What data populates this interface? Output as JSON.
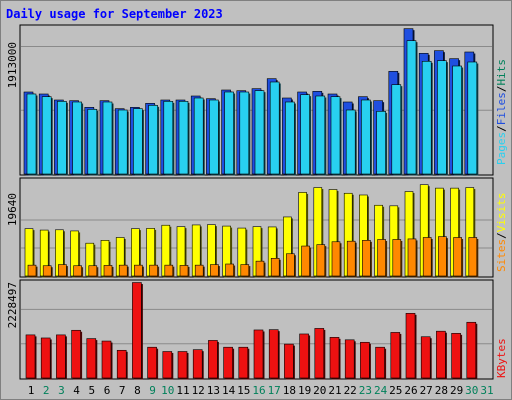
{
  "title": "Daily usage for September 2023",
  "colors": {
    "background": "#c0c0c0",
    "panel": "#c0c0c0",
    "hits": "#1f4fe0",
    "files": "#28d0f0",
    "pages": "#28d0f0",
    "visits": "#ffff00",
    "sites": "#ff8800",
    "kbytes": "#ee1111",
    "weekend_label": "#00805a",
    "weekday_label": "#000000"
  },
  "labels": {
    "pages": "Pages",
    "files": "Files",
    "hits": "Hits",
    "sites": "Sites",
    "visits": "Visits",
    "kbytes": "KBytes",
    "sep": "/"
  },
  "chart_data": [
    {
      "type": "bar",
      "panel": "hits-files-pages",
      "ytick": "1913000",
      "ylim": [
        0,
        2220000
      ],
      "x": [
        1,
        2,
        3,
        4,
        5,
        6,
        7,
        8,
        9,
        10,
        11,
        12,
        13,
        14,
        15,
        16,
        17,
        18,
        19,
        20,
        21,
        22,
        23,
        24,
        25,
        26,
        27,
        28,
        29,
        30,
        31
      ],
      "series": [
        {
          "name": "Hits",
          "values": [
            1230000,
            1200000,
            1110000,
            1100000,
            1000000,
            1100000,
            980000,
            1000000,
            1060000,
            1110000,
            1110000,
            1170000,
            1130000,
            1260000,
            1250000,
            1280000,
            1430000,
            1140000,
            1230000,
            1240000,
            1200000,
            1080000,
            1160000,
            1100000,
            1540000,
            2180000,
            1810000,
            1850000,
            1730000,
            1830000,
            0
          ]
        },
        {
          "name": "Files",
          "values": [
            1200000,
            1160000,
            1090000,
            1080000,
            970000,
            1080000,
            960000,
            980000,
            1030000,
            1090000,
            1090000,
            1140000,
            1110000,
            1230000,
            1230000,
            1250000,
            1380000,
            1080000,
            1190000,
            1170000,
            1160000,
            960000,
            1110000,
            940000,
            1340000,
            2000000,
            1690000,
            1700000,
            1620000,
            1680000,
            0
          ]
        }
      ]
    },
    {
      "type": "bar",
      "panel": "visits-sites",
      "ytick": "19640",
      "ylim": [
        0,
        34000
      ],
      "x": [
        1,
        2,
        3,
        4,
        5,
        6,
        7,
        8,
        9,
        10,
        11,
        12,
        13,
        14,
        15,
        16,
        17,
        18,
        19,
        20,
        21,
        22,
        23,
        24,
        25,
        26,
        27,
        28,
        29,
        30,
        31
      ],
      "series": [
        {
          "name": "Visits",
          "values": [
            16600,
            16100,
            16200,
            15800,
            11500,
            12500,
            13500,
            16600,
            16700,
            17800,
            17300,
            17900,
            18000,
            17500,
            16800,
            17300,
            17200,
            20700,
            29300,
            31000,
            30300,
            29000,
            28400,
            24800,
            24600,
            29600,
            32000,
            30800,
            30800,
            31000,
            0
          ]
        },
        {
          "name": "Sites",
          "values": [
            3800,
            3600,
            4000,
            3600,
            3600,
            3700,
            3800,
            3800,
            3800,
            3800,
            3700,
            3800,
            4000,
            4200,
            4000,
            5200,
            6200,
            7800,
            10500,
            11000,
            12000,
            12200,
            12500,
            12800,
            12800,
            13000,
            13500,
            13800,
            13500,
            13500,
            0
          ]
        }
      ]
    },
    {
      "type": "bar",
      "panel": "kbytes",
      "ytick": "2228497",
      "ylim": [
        0,
        3150000
      ],
      "x": [
        1,
        2,
        3,
        4,
        5,
        6,
        7,
        8,
        9,
        10,
        11,
        12,
        13,
        14,
        15,
        16,
        17,
        18,
        19,
        20,
        21,
        22,
        23,
        24,
        25,
        26,
        27,
        28,
        29,
        30,
        31
      ],
      "series": [
        {
          "name": "KBytes",
          "values": [
            1400000,
            1300000,
            1400000,
            1550000,
            1280000,
            1200000,
            900000,
            3100000,
            1000000,
            860000,
            860000,
            920000,
            1220000,
            1000000,
            1000000,
            1560000,
            1570000,
            1100000,
            1430000,
            1610000,
            1320000,
            1240000,
            1160000,
            1000000,
            1480000,
            2100000,
            1340000,
            1520000,
            1450000,
            1810000,
            0
          ]
        }
      ]
    }
  ],
  "xaxis": {
    "days": [
      "1",
      "2",
      "3",
      "4",
      "5",
      "6",
      "7",
      "8",
      "9",
      "10",
      "11",
      "12",
      "13",
      "14",
      "15",
      "16",
      "17",
      "18",
      "19",
      "20",
      "21",
      "22",
      "23",
      "24",
      "25",
      "26",
      "27",
      "28",
      "29",
      "30",
      "31"
    ],
    "weekend": [
      2,
      3,
      9,
      10,
      16,
      17,
      23,
      24,
      30,
      31
    ]
  }
}
